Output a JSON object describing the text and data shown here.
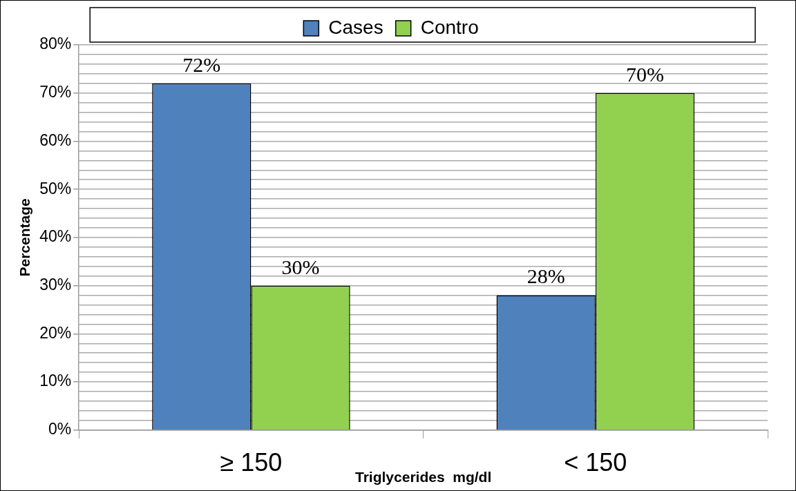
{
  "chart_data": {
    "type": "bar",
    "xlabel": "Triglycerides  mg/dl",
    "ylabel": "Percentage",
    "categories": [
      "≥ 150",
      "< 150"
    ],
    "series": [
      {
        "name": "Cases",
        "color": "#4f81bd",
        "values": [
          72,
          28
        ],
        "value_labels": [
          "72%",
          "28%"
        ]
      },
      {
        "name": "Contro",
        "color": "#92d050",
        "values": [
          30,
          70
        ],
        "value_labels": [
          "30%",
          "70%"
        ]
      }
    ],
    "ylim": [
      0,
      80
    ],
    "yticks": [
      {
        "value": 0,
        "label": "0%"
      },
      {
        "value": 2,
        "label": null
      },
      {
        "value": 4,
        "label": null
      },
      {
        "value": 6,
        "label": null
      },
      {
        "value": 8,
        "label": null
      },
      {
        "value": 10,
        "label": "10%"
      },
      {
        "value": 12,
        "label": null
      },
      {
        "value": 14,
        "label": null
      },
      {
        "value": 16,
        "label": null
      },
      {
        "value": 18,
        "label": null
      },
      {
        "value": 20,
        "label": "20%"
      },
      {
        "value": 22,
        "label": null
      },
      {
        "value": 24,
        "label": null
      },
      {
        "value": 26,
        "label": null
      },
      {
        "value": 28,
        "label": null
      },
      {
        "value": 30,
        "label": "30%"
      },
      {
        "value": 32,
        "label": null
      },
      {
        "value": 34,
        "label": null
      },
      {
        "value": 36,
        "label": null
      },
      {
        "value": 38,
        "label": null
      },
      {
        "value": 40,
        "label": "40%"
      },
      {
        "value": 42,
        "label": null
      },
      {
        "value": 44,
        "label": null
      },
      {
        "value": 46,
        "label": null
      },
      {
        "value": 48,
        "label": null
      },
      {
        "value": 50,
        "label": "50%"
      },
      {
        "value": 52,
        "label": null
      },
      {
        "value": 54,
        "label": null
      },
      {
        "value": 56,
        "label": null
      },
      {
        "value": 58,
        "label": null
      },
      {
        "value": 60,
        "label": "60%"
      },
      {
        "value": 62,
        "label": null
      },
      {
        "value": 64,
        "label": null
      },
      {
        "value": 66,
        "label": null
      },
      {
        "value": 68,
        "label": null
      },
      {
        "value": 70,
        "label": "70%"
      },
      {
        "value": 72,
        "label": null
      },
      {
        "value": 74,
        "label": null
      },
      {
        "value": 76,
        "label": null
      },
      {
        "value": 78,
        "label": null
      },
      {
        "value": 80,
        "label": "80%"
      }
    ],
    "grid": "y",
    "legend": "top"
  }
}
